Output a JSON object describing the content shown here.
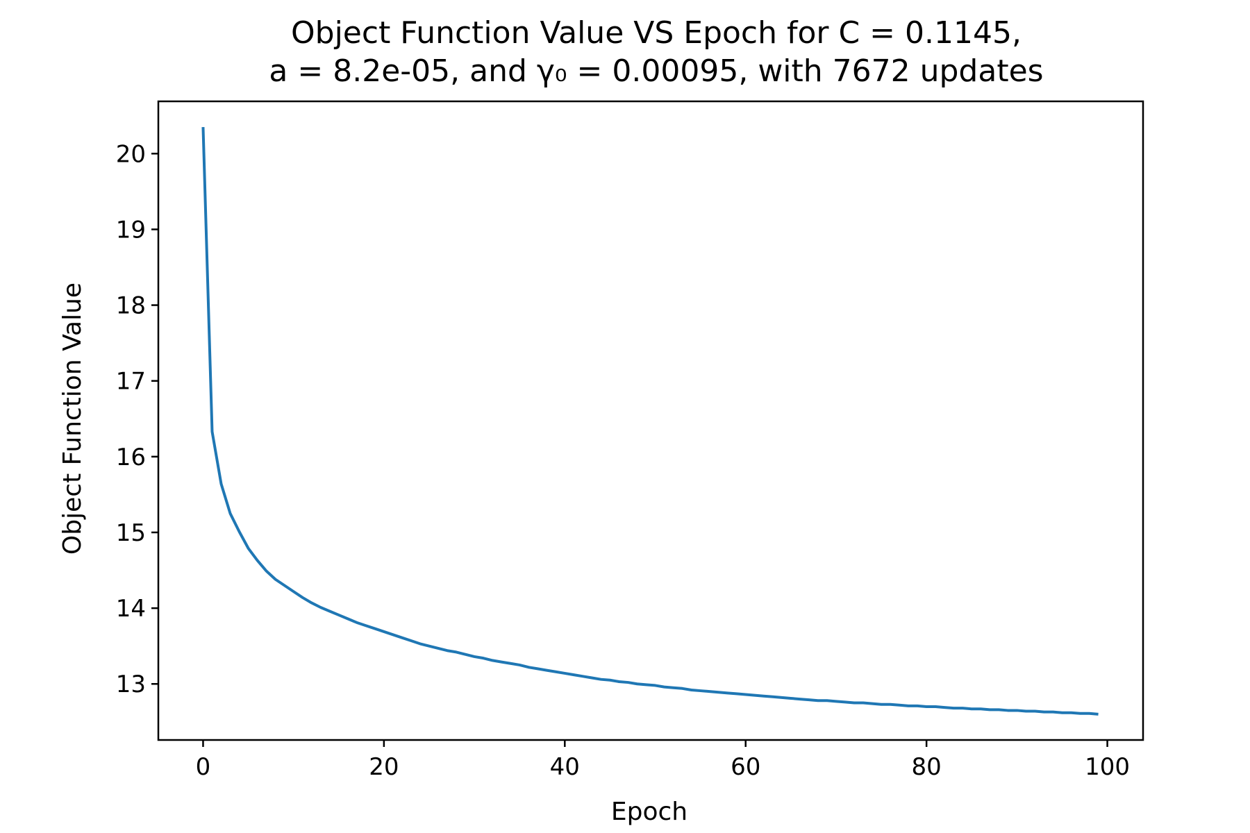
{
  "chart_data": {
    "type": "line",
    "title": "Object Function Value VS Epoch for C = 0.1145,",
    "subtitle": "a = 8.2e-05, and γ₀ = 0.00095, with 7672 updates",
    "xlabel": "Epoch",
    "ylabel": "Object Function Value",
    "xlim": [
      -4.95,
      103.95
    ],
    "ylim": [
      12.26,
      20.69
    ],
    "xticks": [
      0,
      20,
      40,
      60,
      80,
      100
    ],
    "yticks": [
      13,
      14,
      15,
      16,
      17,
      18,
      19,
      20
    ],
    "grid": false,
    "legend": "none",
    "colors": {
      "line": "#1f77b4"
    },
    "series": [
      {
        "x": [
          0,
          1,
          2,
          3,
          4,
          5,
          6,
          7,
          8,
          9,
          10,
          11,
          12,
          13,
          14,
          15,
          16,
          17,
          18,
          19,
          20,
          21,
          22,
          23,
          24,
          25,
          26,
          27,
          28,
          29,
          30,
          31,
          32,
          33,
          34,
          35,
          36,
          37,
          38,
          39,
          40,
          41,
          42,
          43,
          44,
          45,
          46,
          47,
          48,
          49,
          50,
          51,
          52,
          53,
          54,
          55,
          56,
          57,
          58,
          59,
          60,
          61,
          62,
          63,
          64,
          65,
          66,
          67,
          68,
          69,
          70,
          71,
          72,
          73,
          74,
          75,
          76,
          77,
          78,
          79,
          80,
          81,
          82,
          83,
          84,
          85,
          86,
          87,
          88,
          89,
          90,
          91,
          92,
          93,
          94,
          95,
          96,
          97,
          98,
          99
        ],
        "values": [
          20.35,
          16.33,
          15.64,
          15.25,
          15.01,
          14.79,
          14.63,
          14.49,
          14.38,
          14.3,
          14.22,
          14.14,
          14.07,
          14.01,
          13.96,
          13.91,
          13.86,
          13.81,
          13.77,
          13.73,
          13.69,
          13.65,
          13.61,
          13.57,
          13.53,
          13.5,
          13.47,
          13.44,
          13.42,
          13.39,
          13.36,
          13.34,
          13.31,
          13.29,
          13.27,
          13.25,
          13.22,
          13.2,
          13.18,
          13.16,
          13.14,
          13.12,
          13.1,
          13.08,
          13.06,
          13.05,
          13.03,
          13.02,
          13.0,
          12.99,
          12.98,
          12.96,
          12.95,
          12.94,
          12.92,
          12.91,
          12.9,
          12.89,
          12.88,
          12.87,
          12.86,
          12.85,
          12.84,
          12.83,
          12.82,
          12.81,
          12.8,
          12.79,
          12.78,
          12.78,
          12.77,
          12.76,
          12.75,
          12.75,
          12.74,
          12.73,
          12.73,
          12.72,
          12.71,
          12.71,
          12.7,
          12.7,
          12.69,
          12.68,
          12.68,
          12.67,
          12.67,
          12.66,
          12.66,
          12.65,
          12.65,
          12.64,
          12.64,
          12.63,
          12.63,
          12.62,
          12.62,
          12.61,
          12.61,
          12.6
        ]
      }
    ]
  }
}
